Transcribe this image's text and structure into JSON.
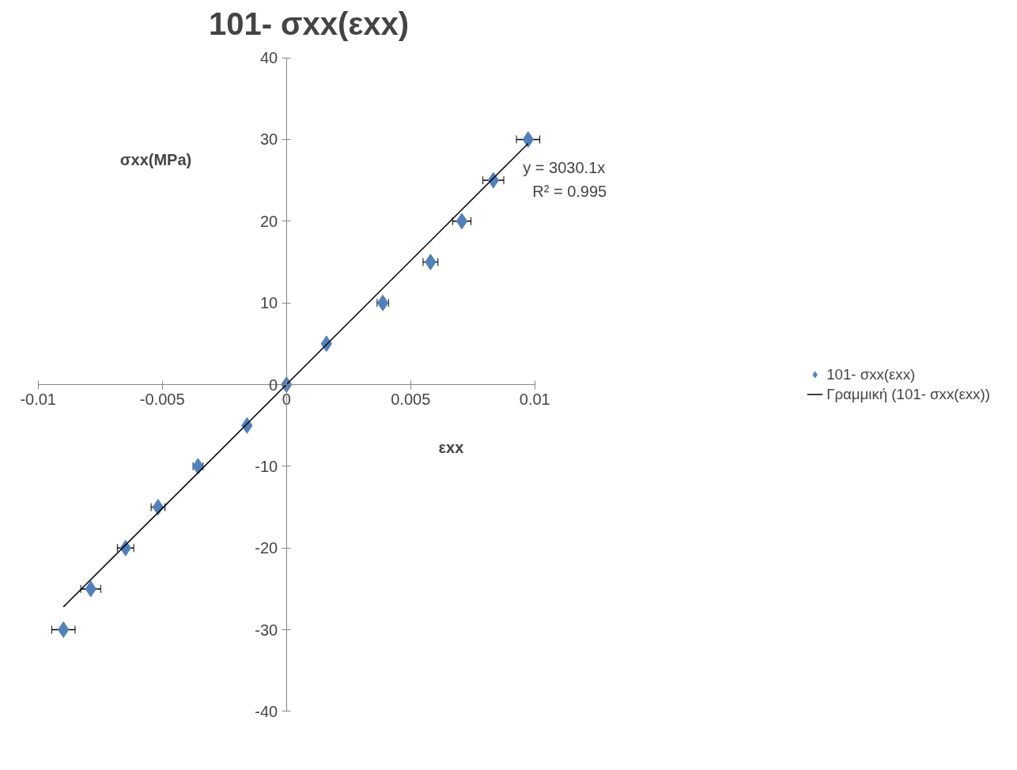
{
  "chart_data": {
    "type": "scatter",
    "title": "101- σxx(εxx)",
    "xlabel": "εxx",
    "ylabel": "σxx(MPa)",
    "xlim": [
      -0.01,
      0.01
    ],
    "xticks": [
      -0.01,
      -0.005,
      0,
      0.005,
      0.01
    ],
    "ylim": [
      -40,
      40
    ],
    "yticks": [
      -40,
      -30,
      -20,
      -10,
      0,
      10,
      20,
      30,
      40
    ],
    "grid": false,
    "legend": "right",
    "series": [
      {
        "name": "101- σxx(εxx)",
        "marker": "diamond",
        "color": "#4f81bd",
        "x": [
          0.00973,
          0.00833,
          0.00706,
          0.0058,
          0.00388,
          0.00161,
          0,
          -0.00159,
          -0.00356,
          -0.00517,
          -0.00648,
          -0.00788,
          -0.00898
        ],
        "values": [
          30,
          25,
          20,
          15,
          10,
          5,
          0,
          -5,
          -10,
          -15,
          -20,
          -25,
          -30
        ],
        "xerrors": [
          0.00047,
          0.00042,
          0.00037,
          0.0003,
          0.00023,
          null,
          null,
          null,
          0.0002,
          0.00028,
          0.00033,
          0.0004,
          0.00047
        ]
      },
      {
        "name": "Γραμμική (101- σxx(εxx))",
        "type": "line",
        "marker": "none",
        "color": "#000000",
        "x": [
          -0.00898,
          0.00973
        ],
        "values": [
          -27.2,
          29.5
        ]
      }
    ],
    "annotations": [
      "y = 3030.1x",
      "R² = 0.995"
    ]
  }
}
